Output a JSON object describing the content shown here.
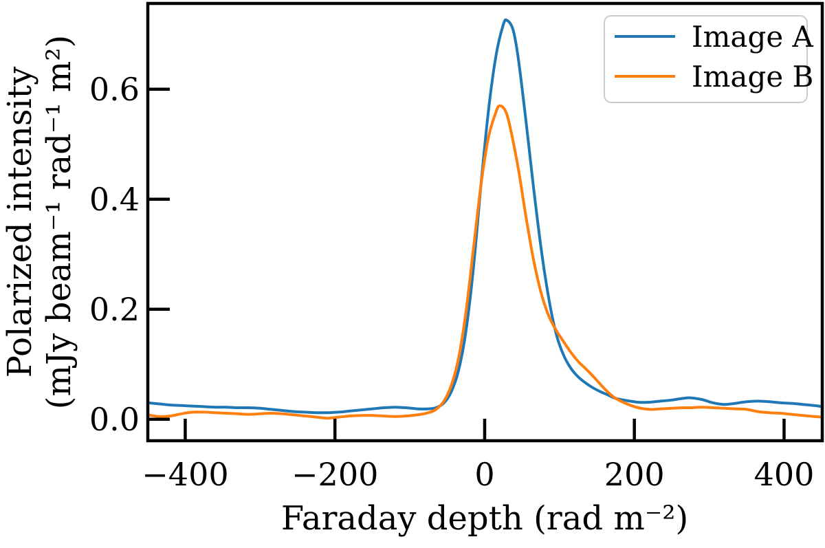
{
  "figure": {
    "background": "#ffffff",
    "text_color": "#000000"
  },
  "chart_data": {
    "type": "line",
    "title": "",
    "xlabel": "Faraday depth (rad m⁻²)",
    "ylabel": "Polarized intensity (mJy beam⁻¹ rad⁻¹ m²)",
    "ylabel_lines": [
      "Polarized intensity",
      "(mJy beam⁻¹ rad⁻¹ m²)"
    ],
    "xlim": [
      -450,
      451
    ],
    "ylim": [
      -0.039,
      0.756
    ],
    "grid": false,
    "tick_direction": "in",
    "xticks": {
      "values": [
        -400,
        -200,
        0,
        200,
        400
      ],
      "labels": [
        "−400",
        "−200",
        "0",
        "200",
        "400"
      ]
    },
    "yticks": {
      "values": [
        0.0,
        0.2,
        0.4,
        0.6
      ],
      "labels": [
        "0.0",
        "0.2",
        "0.4",
        "0.6"
      ]
    },
    "legend": {
      "position": "upper right",
      "border_color": "#cccccc",
      "background": "#ffffff",
      "entries": [
        "Image A",
        "Image B"
      ]
    },
    "series": [
      {
        "name": "Image A",
        "color": "#1f77b4",
        "line_width": 4,
        "peak": {
          "x": 30,
          "y": 0.725
        },
        "points": [
          [
            -450,
            0.03
          ],
          [
            -435,
            0.028
          ],
          [
            -420,
            0.026
          ],
          [
            -405,
            0.025
          ],
          [
            -390,
            0.024
          ],
          [
            -375,
            0.023
          ],
          [
            -360,
            0.022
          ],
          [
            -345,
            0.022
          ],
          [
            -330,
            0.021
          ],
          [
            -315,
            0.021
          ],
          [
            -300,
            0.02
          ],
          [
            -285,
            0.018
          ],
          [
            -270,
            0.016
          ],
          [
            -255,
            0.014
          ],
          [
            -240,
            0.013
          ],
          [
            -225,
            0.012
          ],
          [
            -210,
            0.012
          ],
          [
            -195,
            0.013
          ],
          [
            -180,
            0.015
          ],
          [
            -165,
            0.017
          ],
          [
            -150,
            0.019
          ],
          [
            -135,
            0.021
          ],
          [
            -120,
            0.022
          ],
          [
            -105,
            0.021
          ],
          [
            -90,
            0.019
          ],
          [
            -75,
            0.019
          ],
          [
            -65,
            0.021
          ],
          [
            -55,
            0.029
          ],
          [
            -45,
            0.049
          ],
          [
            -35,
            0.088
          ],
          [
            -25,
            0.16
          ],
          [
            -15,
            0.275
          ],
          [
            -5,
            0.425
          ],
          [
            5,
            0.56
          ],
          [
            15,
            0.66
          ],
          [
            25,
            0.718
          ],
          [
            30,
            0.725
          ],
          [
            38,
            0.708
          ],
          [
            45,
            0.655
          ],
          [
            55,
            0.545
          ],
          [
            65,
            0.425
          ],
          [
            75,
            0.315
          ],
          [
            85,
            0.225
          ],
          [
            95,
            0.158
          ],
          [
            105,
            0.118
          ],
          [
            115,
            0.093
          ],
          [
            125,
            0.077
          ],
          [
            135,
            0.066
          ],
          [
            145,
            0.057
          ],
          [
            155,
            0.05
          ],
          [
            165,
            0.044
          ],
          [
            175,
            0.038
          ],
          [
            190,
            0.034
          ],
          [
            205,
            0.031
          ],
          [
            220,
            0.031
          ],
          [
            235,
            0.033
          ],
          [
            250,
            0.035
          ],
          [
            265,
            0.038
          ],
          [
            275,
            0.039
          ],
          [
            290,
            0.036
          ],
          [
            305,
            0.03
          ],
          [
            320,
            0.027
          ],
          [
            335,
            0.029
          ],
          [
            350,
            0.032
          ],
          [
            365,
            0.033
          ],
          [
            380,
            0.032
          ],
          [
            395,
            0.03
          ],
          [
            410,
            0.029
          ],
          [
            425,
            0.027
          ],
          [
            440,
            0.025
          ],
          [
            451,
            0.023
          ]
        ]
      },
      {
        "name": "Image B",
        "color": "#ff7f0e",
        "line_width": 4,
        "peak": {
          "x": 20,
          "y": 0.57
        },
        "points": [
          [
            -450,
            0.008
          ],
          [
            -435,
            0.005
          ],
          [
            -420,
            0.006
          ],
          [
            -405,
            0.01
          ],
          [
            -390,
            0.013
          ],
          [
            -375,
            0.013
          ],
          [
            -360,
            0.012
          ],
          [
            -345,
            0.011
          ],
          [
            -330,
            0.01
          ],
          [
            -315,
            0.009
          ],
          [
            -300,
            0.01
          ],
          [
            -285,
            0.011
          ],
          [
            -270,
            0.01
          ],
          [
            -255,
            0.008
          ],
          [
            -240,
            0.006
          ],
          [
            -225,
            0.004
          ],
          [
            -210,
            0.002
          ],
          [
            -195,
            0.004
          ],
          [
            -180,
            0.006
          ],
          [
            -165,
            0.007
          ],
          [
            -150,
            0.007
          ],
          [
            -135,
            0.006
          ],
          [
            -120,
            0.005
          ],
          [
            -105,
            0.006
          ],
          [
            -90,
            0.008
          ],
          [
            -75,
            0.012
          ],
          [
            -65,
            0.018
          ],
          [
            -55,
            0.032
          ],
          [
            -45,
            0.06
          ],
          [
            -35,
            0.11
          ],
          [
            -25,
            0.195
          ],
          [
            -15,
            0.31
          ],
          [
            -5,
            0.425
          ],
          [
            5,
            0.512
          ],
          [
            15,
            0.558
          ],
          [
            20,
            0.57
          ],
          [
            28,
            0.56
          ],
          [
            35,
            0.525
          ],
          [
            45,
            0.455
          ],
          [
            55,
            0.37
          ],
          [
            65,
            0.292
          ],
          [
            75,
            0.232
          ],
          [
            85,
            0.19
          ],
          [
            95,
            0.163
          ],
          [
            105,
            0.142
          ],
          [
            115,
            0.122
          ],
          [
            125,
            0.105
          ],
          [
            135,
            0.092
          ],
          [
            145,
            0.078
          ],
          [
            155,
            0.063
          ],
          [
            165,
            0.049
          ],
          [
            175,
            0.038
          ],
          [
            190,
            0.028
          ],
          [
            205,
            0.021
          ],
          [
            220,
            0.018
          ],
          [
            235,
            0.019
          ],
          [
            250,
            0.02
          ],
          [
            265,
            0.021
          ],
          [
            275,
            0.021
          ],
          [
            290,
            0.022
          ],
          [
            305,
            0.021
          ],
          [
            320,
            0.02
          ],
          [
            335,
            0.019
          ],
          [
            350,
            0.018
          ],
          [
            365,
            0.014
          ],
          [
            380,
            0.012
          ],
          [
            395,
            0.011
          ],
          [
            410,
            0.009
          ],
          [
            425,
            0.007
          ],
          [
            440,
            0.005
          ],
          [
            451,
            0.004
          ]
        ]
      }
    ]
  }
}
